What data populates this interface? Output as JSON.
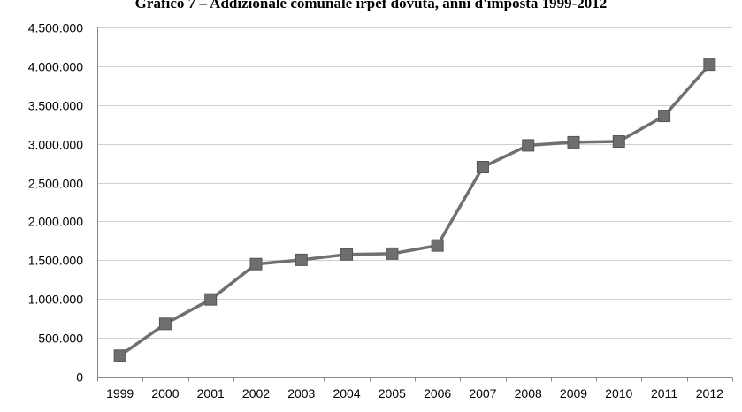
{
  "chart_data": {
    "type": "line",
    "title": "Grafico 7 – Addizionale comunale irpef dovuta, anni d'imposta 1999-2012",
    "xlabel": "",
    "ylabel": "",
    "categories": [
      "1999",
      "2000",
      "2001",
      "2002",
      "2003",
      "2004",
      "2005",
      "2006",
      "2007",
      "2008",
      "2009",
      "2010",
      "2011",
      "2012"
    ],
    "series": [
      {
        "values": [
          270000,
          680000,
          995000,
          1450000,
          1505000,
          1575000,
          1585000,
          1690000,
          2700000,
          2980000,
          3020000,
          3030000,
          3360000,
          4020000
        ]
      }
    ],
    "ylim": [
      0,
      4500000
    ],
    "yticks": [
      0,
      500000,
      1000000,
      1500000,
      2000000,
      2500000,
      3000000,
      3500000,
      4000000,
      4500000
    ],
    "ytick_labels": [
      "0",
      "500.000",
      "1.000.000",
      "1.500.000",
      "2.000.000",
      "2.500.000",
      "3.000.000",
      "3.500.000",
      "4.000.000",
      "4.500.000"
    ],
    "grid": true,
    "line_color": "#707070",
    "marker_color": "#6e6e6e",
    "grid_color": "#d0d0d0",
    "axis_color": "#868686"
  }
}
